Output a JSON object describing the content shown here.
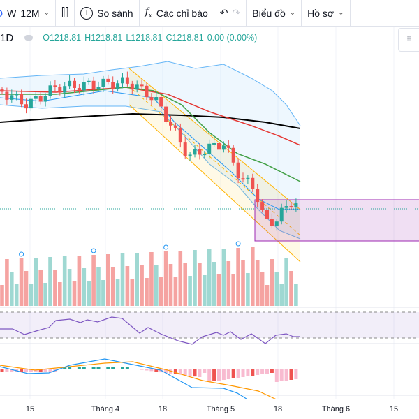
{
  "toolbar": {
    "interval_d": "D",
    "interval_w": "W",
    "interval_12m": "12M",
    "candles_icon": "candlestick-icon",
    "compare": "So sánh",
    "indicators": "Các chỉ báo",
    "chart": "Biểu đồ",
    "profile": "Hồ sơ"
  },
  "legend": {
    "interval": "1D",
    "open": "O1218.81",
    "high": "H1218.81",
    "low": "L1218.81",
    "close": "C1218.81",
    "change": "0.00 (0.00%)"
  },
  "time_axis": [
    "15",
    "Tháng 4",
    "18",
    "Tháng 5",
    "18",
    "Tháng 6",
    "15"
  ],
  "colors": {
    "up": "#26a69a",
    "down": "#ef5350",
    "rsi": "#7e57c2",
    "macd": "#2196f3",
    "signal": "#ff9800",
    "zone": "#9c27b0"
  }
}
